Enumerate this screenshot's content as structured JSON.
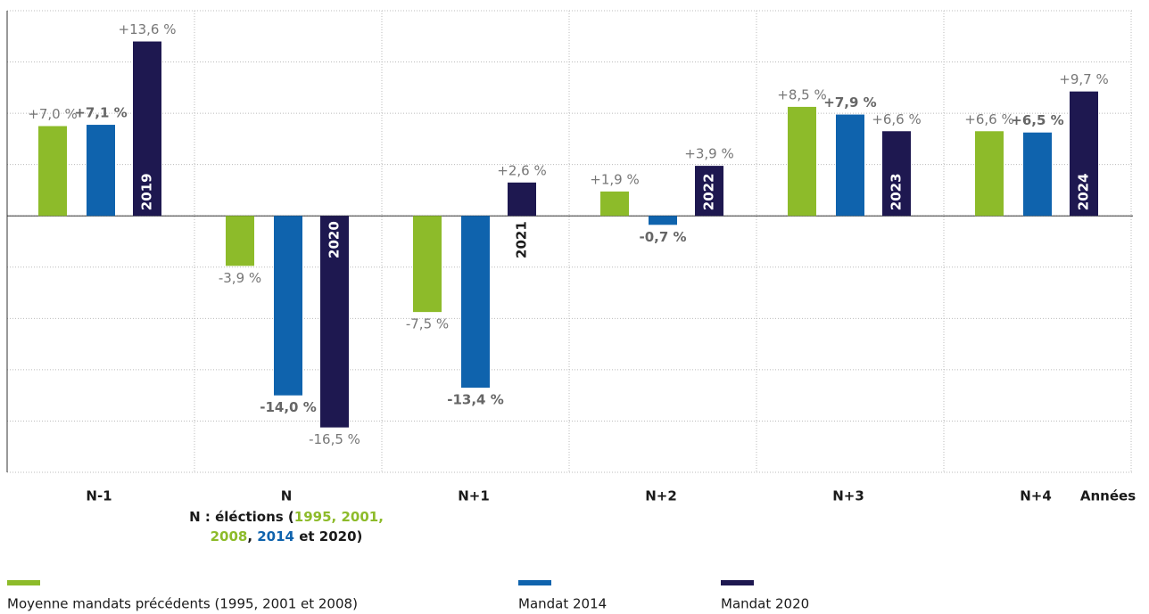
{
  "chart_data": {
    "type": "bar",
    "categories": [
      "N-1",
      "N",
      "N+1",
      "N+2",
      "N+3",
      "N+4"
    ],
    "x_label": "Années",
    "annotation_lines": [
      [
        {
          "text": "N : éléctions (",
          "color": "#1a1a1a"
        },
        {
          "text": "1995, 2001,",
          "color": "#8dbb2a"
        }
      ],
      [
        {
          "text": "2008",
          "color": "#8dbb2a"
        },
        {
          "text": ", ",
          "color": "#1a1a1a"
        },
        {
          "text": "2014",
          "color": "#0f63ad"
        },
        {
          "text": " et 2020)",
          "color": "#1a1a1a"
        }
      ]
    ],
    "series": [
      {
        "name": "Moyenne mandats précédents (1995, 2001 et 2008)",
        "color": "#8dbb2a",
        "values": [
          7.0,
          -3.9,
          -7.5,
          1.9,
          8.5,
          6.6
        ],
        "value_labels": [
          "+7,0 %",
          "-3,9 %",
          "-7,5 %",
          "+1,9 %",
          "+8,5 %",
          "+6,6 %"
        ]
      },
      {
        "name": "Mandat 2014",
        "color": "#0f63ad",
        "values": [
          7.1,
          -14.0,
          -13.4,
          -0.7,
          7.9,
          6.5
        ],
        "value_labels": [
          "+7,1 %",
          "-14,0 %",
          "-13,4 %",
          "-0,7 %",
          "+7,9 %",
          "+6,5 %"
        ]
      },
      {
        "name": "Mandat 2020",
        "color": "#1e1850",
        "values": [
          13.6,
          -16.5,
          2.6,
          3.9,
          6.6,
          9.7
        ],
        "value_labels": [
          "+13,6 %",
          "-16,5 %",
          "+2,6 %",
          "+3,9 %",
          "+6,6 %",
          "+9,7 %"
        ],
        "bar_labels": [
          "2019",
          "2020",
          "2021",
          "2022",
          "2023",
          "2024"
        ]
      }
    ],
    "ylim": [
      -20,
      16
    ],
    "yticks": [
      -20,
      -16,
      -12,
      -8,
      -4,
      0,
      4,
      8,
      12,
      16
    ],
    "grid": true
  }
}
